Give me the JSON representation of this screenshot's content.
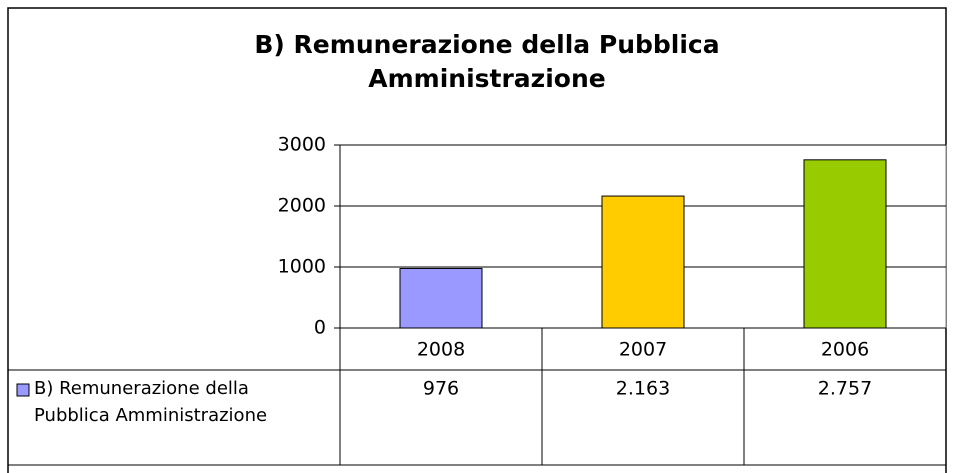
{
  "chart_data": {
    "type": "bar",
    "title": "B) Remunerazione della Pubblica Amministrazione",
    "categories": [
      "2008",
      "2007",
      "2006"
    ],
    "series": [
      {
        "name": "B) Remunerazione della Pubblica Amministrazione",
        "colors": [
          "#9999ff",
          "#ffcc00",
          "#99cc00"
        ],
        "values": [
          976,
          2163,
          2757
        ],
        "value_labels": [
          "976",
          "2.163",
          "2.757"
        ]
      }
    ],
    "ylim": [
      0,
      3000
    ],
    "yticks": [
      0,
      1000,
      2000,
      3000
    ],
    "grid": true,
    "data_table": true
  }
}
